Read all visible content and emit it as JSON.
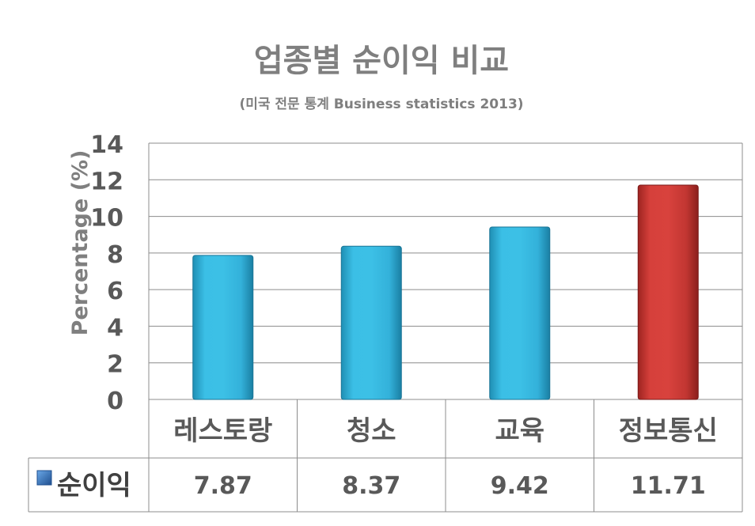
{
  "chart_data": {
    "type": "bar",
    "title": "업종별 순이익 비교",
    "subtitle": "(미국 전문 통계 Business statistics  2013)",
    "ylabel": "Percentage (%)",
    "xlabel": "",
    "categories": [
      "레스토랑",
      "청소",
      "교육",
      "정보통신"
    ],
    "series": [
      {
        "name": "순이익",
        "values": [
          7.87,
          8.37,
          9.42,
          11.71
        ]
      }
    ],
    "value_labels": [
      "7.87",
      "8.37",
      "9.42",
      "11.71"
    ],
    "ylim": [
      0,
      14
    ],
    "yticks": [
      0,
      2,
      4,
      6,
      8,
      10,
      12,
      14
    ],
    "grid": true,
    "data_table": true,
    "colors": {
      "bar": "#33b5dc",
      "highlight_bar": "#c83a36",
      "legend_marker": "#2e6db3",
      "grid": "#8c8c8c"
    },
    "highlight_index": 3
  }
}
